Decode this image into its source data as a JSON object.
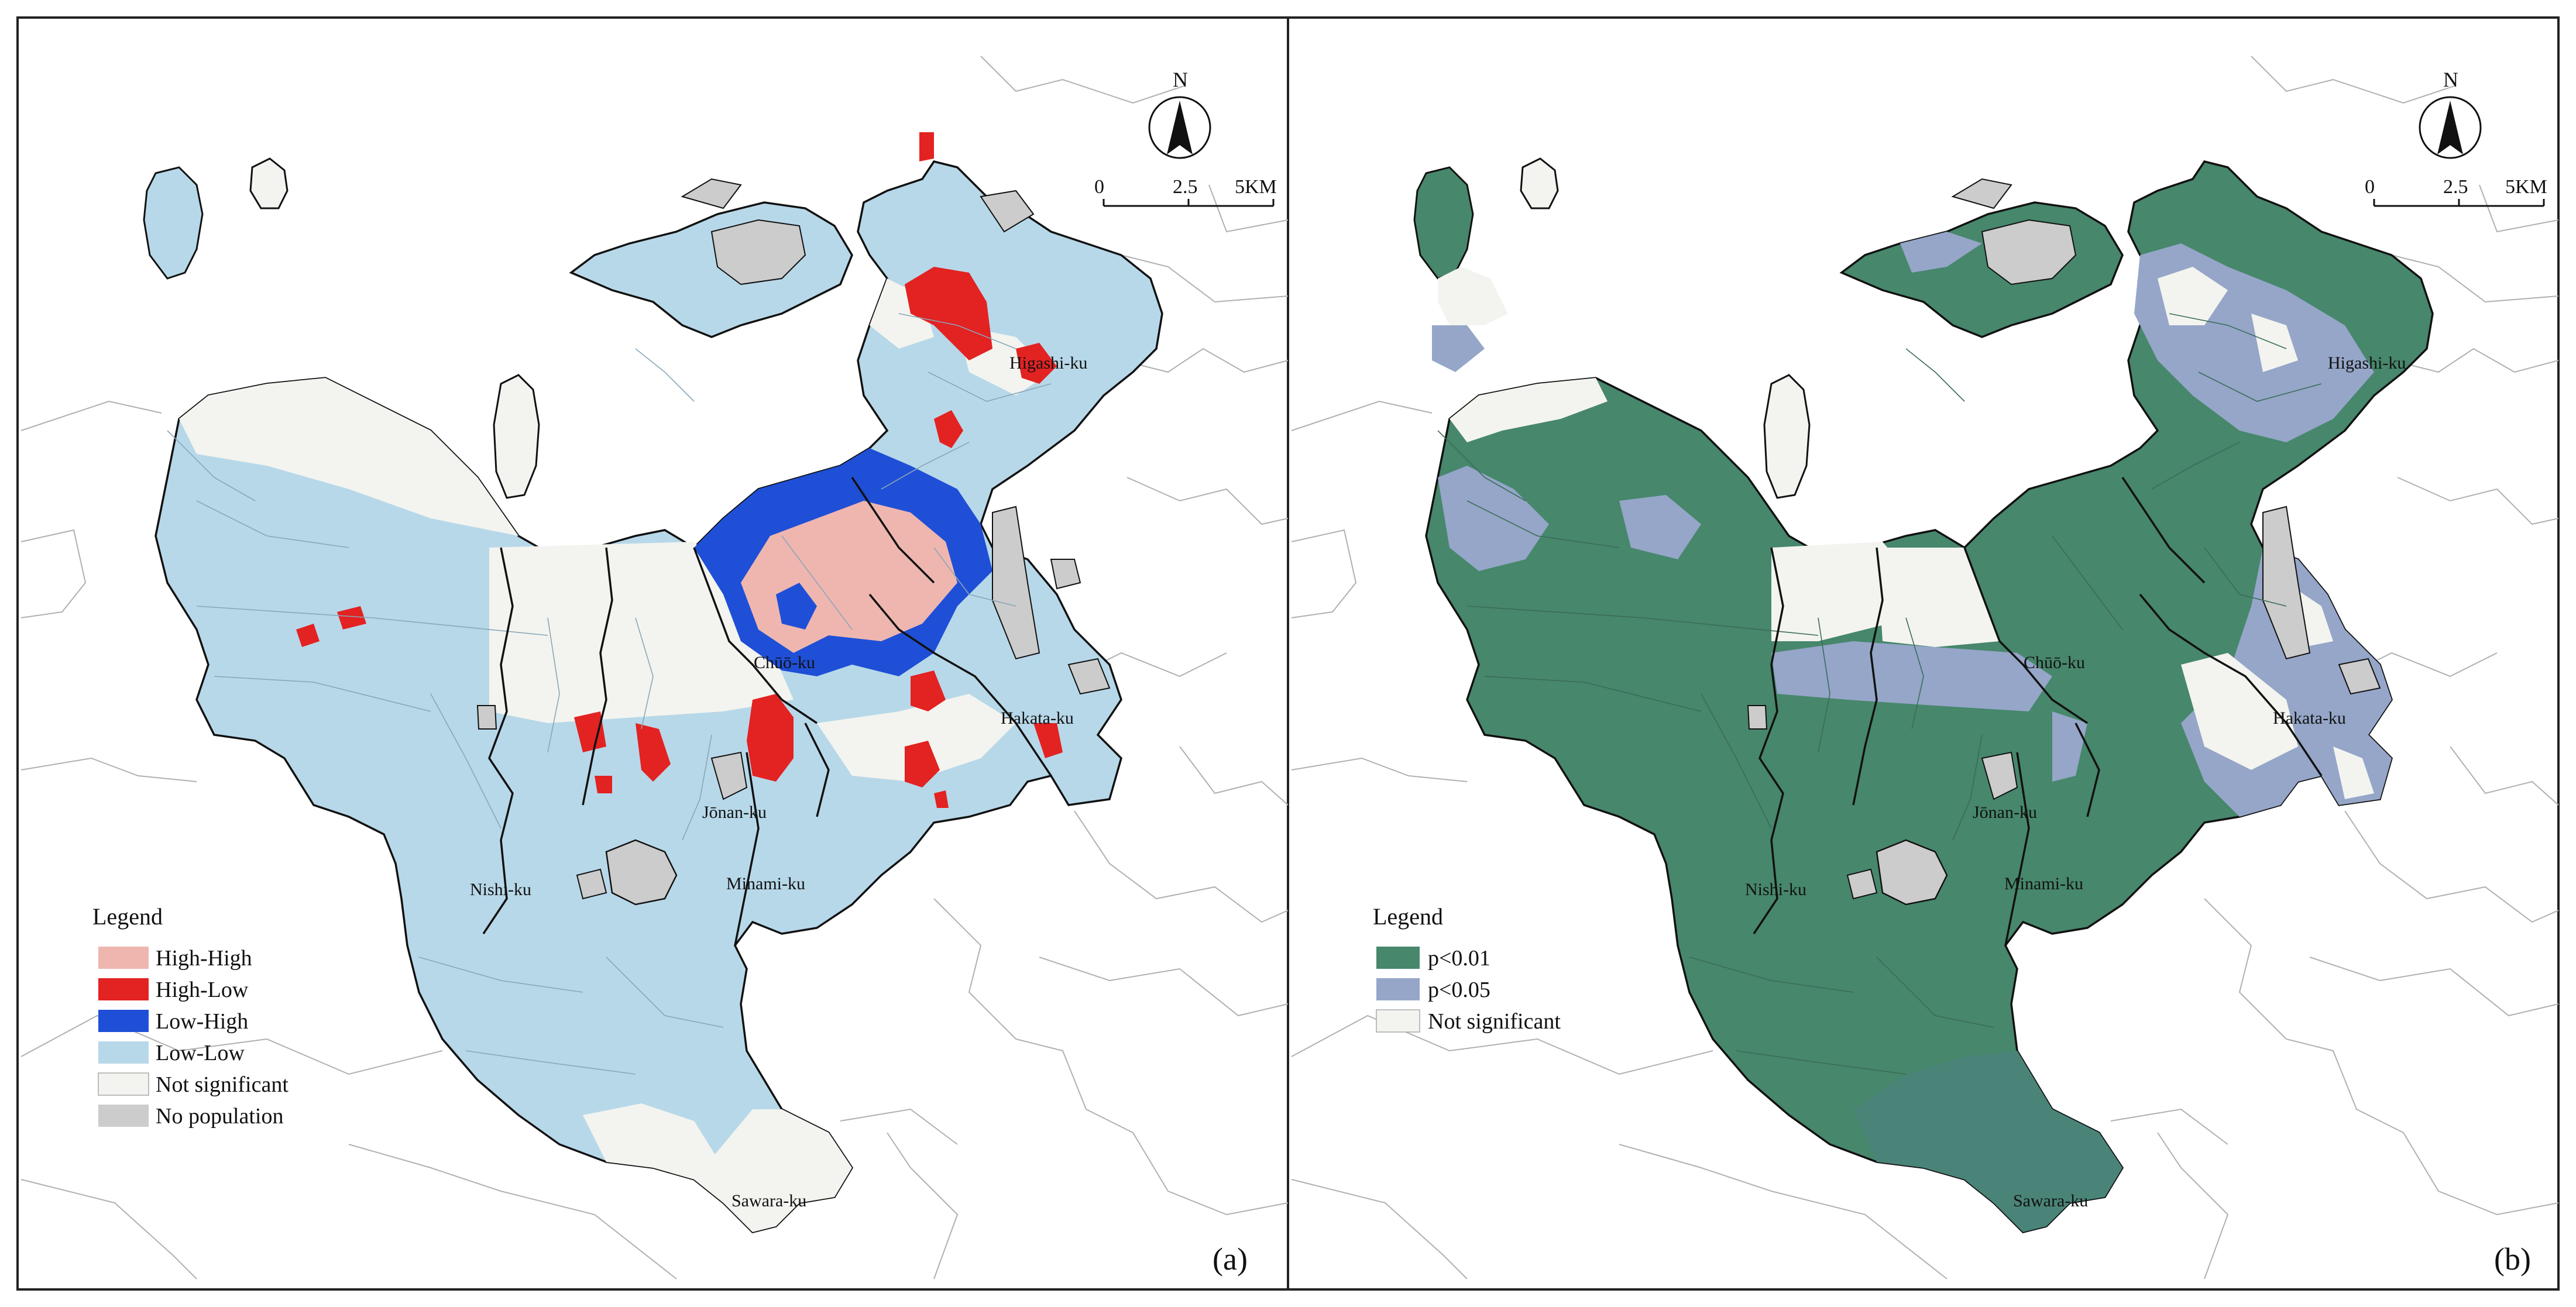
{
  "figure": {
    "panels": [
      {
        "id": "a",
        "label": "(a)",
        "north": "N",
        "scale": [
          "0",
          "2.5",
          "5KM"
        ],
        "legend_title": "Legend",
        "legend": [
          {
            "label": "High-High",
            "color": "#efb6b0"
          },
          {
            "label": "High-Low",
            "color": "#e32222"
          },
          {
            "label": "Low-High",
            "color": "#1f4fd6"
          },
          {
            "label": "Low-Low",
            "color": "#b7d8e9"
          },
          {
            "label": "Not significant",
            "color": "#f3f4ef"
          },
          {
            "label": "No population",
            "color": "#cccccc"
          }
        ],
        "districts": [
          "Higashi-ku",
          "Chūō-ku",
          "Hakata-ku",
          "Jōnan-ku",
          "Nishi-ku",
          "Minami-ku",
          "Sawara-ku"
        ]
      },
      {
        "id": "b",
        "label": "(b)",
        "north": "N",
        "scale": [
          "0",
          "2.5",
          "5KM"
        ],
        "legend_title": "Legend",
        "legend": [
          {
            "label": "p<0.01",
            "color": "#47876c"
          },
          {
            "label": "p<0.05",
            "color": "#95a6c8"
          },
          {
            "label": "Not significant",
            "color": "#f3f4ef"
          }
        ],
        "districts": [
          "Higashi-ku",
          "Chūō-ku",
          "Hakata-ku",
          "Jōnan-ku",
          "Nishi-ku",
          "Minami-ku",
          "Sawara-ku"
        ]
      }
    ]
  }
}
